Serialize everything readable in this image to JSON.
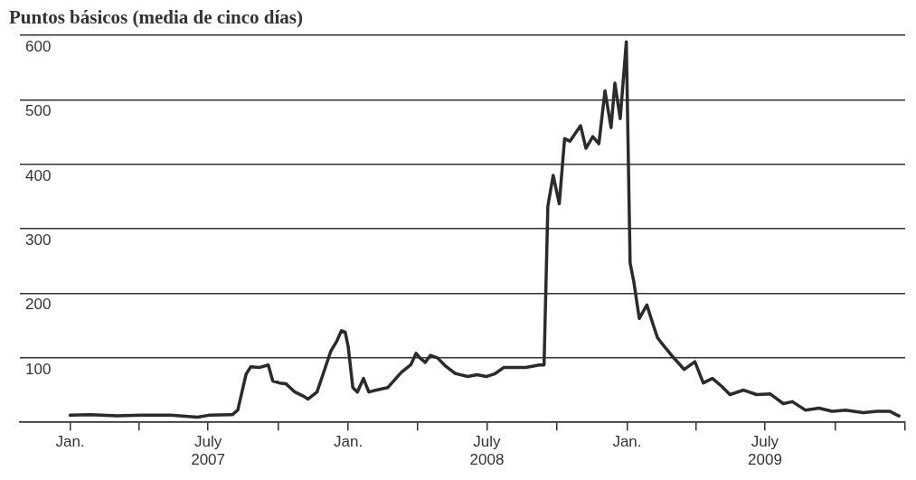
{
  "chart_data": {
    "type": "line",
    "title": "Puntos básicos (media de cinco días)",
    "x": [
      "2007-01-01",
      "2007-01-28",
      "2007-03-04",
      "2007-04-04",
      "2007-05-13",
      "2007-06-17",
      "2007-07-02",
      "2007-08-02",
      "2007-08-09",
      "2007-08-20",
      "2007-08-26",
      "2007-09-06",
      "2007-09-18",
      "2007-09-24",
      "2007-10-03",
      "2007-10-11",
      "2007-10-23",
      "2007-11-04",
      "2007-11-09",
      "2007-11-21",
      "2007-11-29",
      "2007-12-09",
      "2007-12-17",
      "2007-12-23",
      "2007-12-28",
      "2008-01-01",
      "2008-01-07",
      "2008-01-13",
      "2008-01-21",
      "2008-01-28",
      "2008-02-07",
      "2008-02-22",
      "2008-03-11",
      "2008-03-23",
      "2008-03-30",
      "2008-04-04",
      "2008-04-11",
      "2008-04-18",
      "2008-04-27",
      "2008-05-08",
      "2008-05-20",
      "2008-06-06",
      "2008-06-18",
      "2008-06-30",
      "2008-07-11",
      "2008-07-23",
      "2008-08-09",
      "2008-08-21",
      "2008-09-08",
      "2008-09-14",
      "2008-09-19",
      "2008-09-26",
      "2008-10-04",
      "2008-10-11",
      "2008-10-18",
      "2008-11-01",
      "2008-11-08",
      "2008-11-17",
      "2008-11-25",
      "2008-12-03",
      "2008-12-11",
      "2008-12-16",
      "2008-12-23",
      "2008-12-31",
      "2009-01-05",
      "2009-01-10",
      "2009-01-17",
      "2009-01-27",
      "2009-02-03",
      "2009-02-10",
      "2009-02-18",
      "2009-03-01",
      "2009-03-17",
      "2009-03-31",
      "2009-04-11",
      "2009-04-23",
      "2009-05-05",
      "2009-05-16",
      "2009-06-03",
      "2009-06-20",
      "2009-07-08",
      "2009-07-25",
      "2009-08-06",
      "2009-08-23",
      "2009-09-10",
      "2009-09-27",
      "2009-10-15",
      "2009-11-07",
      "2009-11-25",
      "2009-12-12",
      "2009-12-20",
      "2009-12-24"
    ],
    "series": [
      {
        "color": "#2b2b2b",
        "values": [
          11,
          12,
          10,
          11,
          11,
          8,
          11,
          12,
          19,
          75,
          86,
          85,
          89,
          64,
          61,
          60,
          47,
          40,
          36,
          47,
          75,
          110,
          126,
          142,
          140,
          117,
          54,
          47,
          68,
          47,
          50,
          54,
          78,
          89,
          107,
          100,
          93,
          104,
          100,
          87,
          76,
          71,
          74,
          71,
          75,
          85,
          85,
          85,
          89,
          89,
          335,
          383,
          339,
          440,
          436,
          460,
          425,
          443,
          432,
          514,
          457,
          526,
          471,
          590,
          247,
          217,
          161,
          182,
          156,
          131,
          119,
          103,
          82,
          94,
          61,
          68,
          56,
          43,
          50,
          43,
          44,
          29,
          32,
          19,
          22,
          17,
          19,
          15,
          17,
          17,
          12,
          10
        ]
      }
    ],
    "xlim": [
      "2006-10-27",
      "2010-01-01"
    ],
    "xticks": [
      {
        "value": "2007-01-01",
        "label": "Jan."
      },
      {
        "value": "2007-04-01",
        "label": null
      },
      {
        "value": "2007-07-01",
        "label": "July\n2007"
      },
      {
        "value": "2007-10-01",
        "label": null
      },
      {
        "value": "2008-01-01",
        "label": "Jan."
      },
      {
        "value": "2008-04-01",
        "label": null
      },
      {
        "value": "2008-07-01",
        "label": "July\n2008"
      },
      {
        "value": "2008-10-01",
        "label": null
      },
      {
        "value": "2009-01-01",
        "label": "Jan."
      },
      {
        "value": "2009-04-01",
        "label": null
      },
      {
        "value": "2009-07-01",
        "label": "July\n2009"
      },
      {
        "value": "2009-10-01",
        "label": null
      },
      {
        "value": "2010-01-01",
        "label": null
      }
    ],
    "ylim": [
      0,
      600
    ],
    "yticks": [
      {
        "value": 0,
        "label": null
      },
      100,
      200,
      300,
      400,
      500,
      600
    ],
    "grid": "y",
    "legend": false,
    "marker": "none",
    "line_style": "solid"
  }
}
